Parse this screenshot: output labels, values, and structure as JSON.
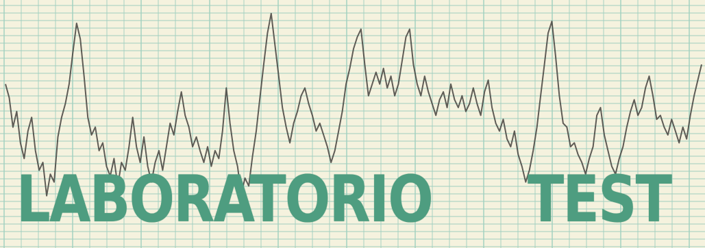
{
  "banner": {
    "title_word_1": "LABORATORIO",
    "title_word_2": "TEST"
  },
  "colors": {
    "paper": "#f5f2de",
    "grid_line": "#9fcfbf",
    "trace": "#3a3633",
    "title": "#4e9d80"
  },
  "trace_graph": {
    "values": [
      0.62,
      0.55,
      0.4,
      0.48,
      0.32,
      0.24,
      0.38,
      0.45,
      0.28,
      0.18,
      0.22,
      0.05,
      0.16,
      0.12,
      0.35,
      0.45,
      0.52,
      0.62,
      0.78,
      0.93,
      0.85,
      0.66,
      0.45,
      0.36,
      0.4,
      0.28,
      0.32,
      0.2,
      0.15,
      0.24,
      0.1,
      0.22,
      0.18,
      0.3,
      0.45,
      0.3,
      0.22,
      0.35,
      0.2,
      0.12,
      0.22,
      0.28,
      0.18,
      0.3,
      0.42,
      0.36,
      0.48,
      0.58,
      0.46,
      0.4,
      0.3,
      0.35,
      0.28,
      0.22,
      0.3,
      0.2,
      0.28,
      0.24,
      0.38,
      0.6,
      0.42,
      0.28,
      0.2,
      0.06,
      0.14,
      0.1,
      0.25,
      0.38,
      0.55,
      0.72,
      0.88,
      0.98,
      0.82,
      0.66,
      0.5,
      0.4,
      0.32,
      0.42,
      0.48,
      0.56,
      0.6,
      0.52,
      0.46,
      0.38,
      0.42,
      0.36,
      0.3,
      0.22,
      0.28,
      0.38,
      0.48,
      0.62,
      0.7,
      0.8,
      0.86,
      0.9,
      0.72,
      0.56,
      0.62,
      0.68,
      0.62,
      0.7,
      0.6,
      0.66,
      0.56,
      0.62,
      0.74,
      0.86,
      0.9,
      0.72,
      0.62,
      0.56,
      0.66,
      0.58,
      0.52,
      0.46,
      0.54,
      0.58,
      0.5,
      0.62,
      0.54,
      0.5,
      0.56,
      0.48,
      0.52,
      0.6,
      0.52,
      0.46,
      0.58,
      0.64,
      0.5,
      0.42,
      0.38,
      0.44,
      0.34,
      0.3,
      0.38,
      0.26,
      0.2,
      0.12,
      0.18,
      0.28,
      0.4,
      0.56,
      0.72,
      0.88,
      0.94,
      0.76,
      0.56,
      0.42,
      0.4,
      0.3,
      0.32,
      0.26,
      0.22,
      0.16,
      0.24,
      0.3,
      0.46,
      0.5,
      0.36,
      0.28,
      0.2,
      0.16,
      0.24,
      0.3,
      0.4,
      0.48,
      0.54,
      0.46,
      0.5,
      0.6,
      0.66,
      0.56,
      0.44,
      0.46,
      0.4,
      0.36,
      0.44,
      0.38,
      0.32,
      0.4,
      0.34,
      0.46,
      0.56,
      0.64,
      0.72
    ]
  }
}
